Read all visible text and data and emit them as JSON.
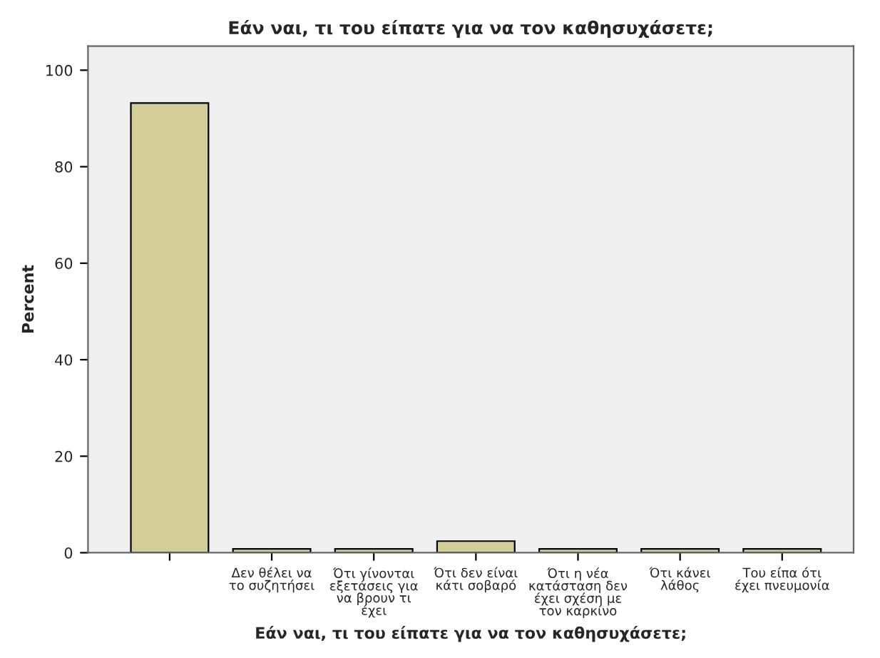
{
  "chart_data": {
    "type": "bar",
    "title": "Εάν ναι, τι του είπατε για να τον καθησυχάσετε;",
    "xlabel": "Εάν ναι, τι του είπατε για να τον καθησυχάσετε;",
    "ylabel": "Percent",
    "categories": [
      null,
      "Δεν θέλει να\nτο συζητήσει",
      "Ότι γίνονται\nεξετάσεις για\nνα βρουν τι\nέχει",
      "Ότι δεν είναι\nκάτι σοβαρό",
      "Ότι η νέα\nκατάσταση δεν\nέχει σχέση με\nτον καρκίνο",
      "Ότι κάνει\nλάθος",
      "Του είπα ότι\nέχει πνευμονία"
    ],
    "values": [
      93.2,
      0.8,
      0.8,
      2.4,
      0.8,
      0.8,
      0.8
    ],
    "color": "#d3ce97",
    "ylim": [
      0,
      105
    ],
    "yticks": [
      0,
      20,
      40,
      60,
      80,
      100
    ],
    "grid": false,
    "legend": false
  }
}
